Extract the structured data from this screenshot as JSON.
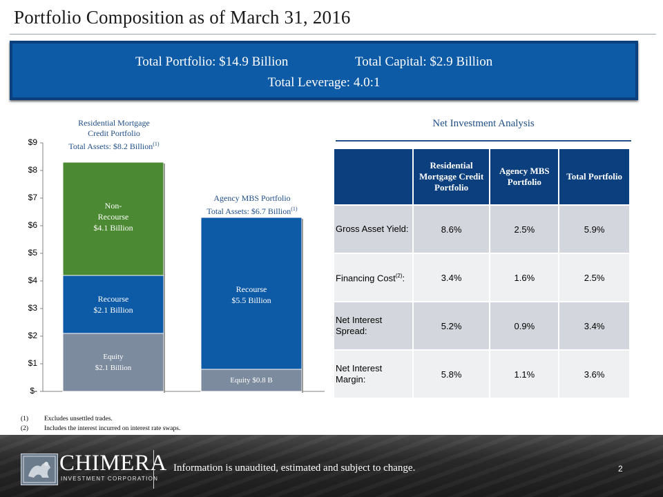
{
  "title": "Portfolio Composition as of March 31, 2016",
  "banner": {
    "total_portfolio": "Total Portfolio: $14.9 Billion",
    "total_capital": "Total Capital: $2.9 Billion",
    "total_leverage": "Total Leverage: 4.0:1"
  },
  "chart_data": {
    "type": "bar",
    "stacked": true,
    "categories": [
      "Residential Mortgage Credit Portfolio",
      "Agency MBS Portfolio"
    ],
    "category_titles": [
      {
        "line1": "Residential Mortgage",
        "line2": "Credit Portfolio",
        "line3": "Total Assets: $8.2 Billion",
        "footnote": "(1)"
      },
      {
        "line1": "Agency MBS Portfolio",
        "line2": "Total Assets: $6.7 Billion",
        "footnote": "(1)"
      }
    ],
    "series": [
      {
        "name": "Equity",
        "color": "#7c8b9d",
        "values": [
          2.1,
          0.8
        ],
        "labels": [
          [
            "Equity",
            "$2.1 Billion"
          ],
          [
            "Equity $0.8 B"
          ]
        ]
      },
      {
        "name": "Recourse",
        "color": "#0d5aa7",
        "values": [
          2.1,
          5.5
        ],
        "labels": [
          [
            "Recourse",
            "$2.1 Billion"
          ],
          [
            "Recourse",
            "$5.5 Billion"
          ]
        ]
      },
      {
        "name": "Non-Recourse",
        "color": "#4b8a32",
        "values": [
          4.1,
          0
        ],
        "labels": [
          [
            "Non-",
            "Recourse",
            "$4.1 Billion"
          ],
          []
        ]
      }
    ],
    "ylim": [
      0,
      9
    ],
    "yticks": [
      "$-",
      "$1",
      "$2",
      "$3",
      "$4",
      "$5",
      "$6",
      "$7",
      "$8",
      "$9"
    ],
    "grid": false
  },
  "net_investment": {
    "title": "Net Investment Analysis",
    "headers": [
      "",
      "Residential Mortgage Credit Portfolio",
      "Agency MBS Portfolio",
      "Total Portfolio"
    ],
    "rows": [
      {
        "label": "Gross Asset Yield:",
        "values": [
          "8.6%",
          "2.5%",
          "5.9%"
        ]
      },
      {
        "label": "Financing Cost",
        "footnote": "(2)",
        "suffix": ":",
        "values": [
          "3.4%",
          "1.6%",
          "2.5%"
        ]
      },
      {
        "label": "Net Interest Spread:",
        "values": [
          "5.2%",
          "0.9%",
          "3.4%"
        ]
      },
      {
        "label": "Net Interest Margin:",
        "values": [
          "5.8%",
          "1.1%",
          "3.6%"
        ]
      }
    ]
  },
  "footnotes": [
    {
      "num": "(1)",
      "text": "Excludes unsettled trades."
    },
    {
      "num": "(2)",
      "text": "Includes the interest incurred on interest rate swaps."
    }
  ],
  "footer": {
    "brand": "CHIMERA",
    "sub": "INVESTMENT CORPORATION",
    "disclaimer": "Information is unaudited, estimated and subject to change.",
    "page": "2"
  },
  "colors": {
    "navy": "#0b3f7d",
    "blue": "#0d5aa7",
    "green": "#4b8a32",
    "gray": "#7c8b9d"
  }
}
